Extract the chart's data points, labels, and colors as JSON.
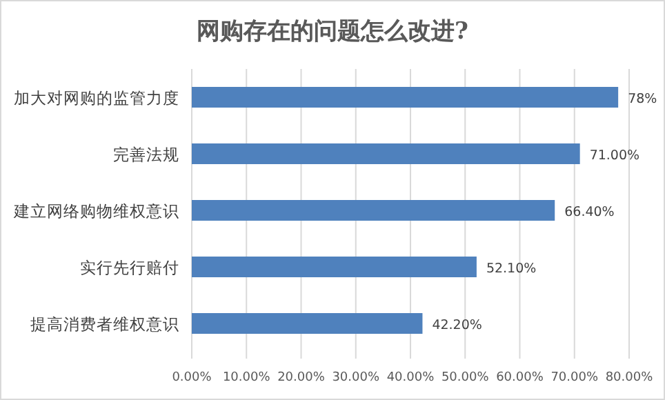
{
  "chart_data": {
    "type": "bar",
    "orientation": "horizontal",
    "title": "网购存在的问题怎么改进?",
    "categories": [
      "加大对网购的监管力度",
      "完善法规",
      "建立网络购物维权意识",
      "实行先行赔付",
      "提高消费者维权意识"
    ],
    "values": [
      78,
      71.0,
      66.4,
      52.1,
      42.2
    ],
    "value_labels": [
      "78%",
      "71.00%",
      "66.40%",
      "52.10%",
      "42.20%"
    ],
    "color": "#4f81bd",
    "xlim": [
      0,
      80
    ],
    "xticks": [
      {
        "value": 0,
        "label": "0.00%"
      },
      {
        "value": 10,
        "label": "10.00%"
      },
      {
        "value": 20,
        "label": "20.00%"
      },
      {
        "value": 30,
        "label": "30.00%"
      },
      {
        "value": 40,
        "label": "40.00%"
      },
      {
        "value": 50,
        "label": "50.00%"
      },
      {
        "value": 60,
        "label": "60.00%"
      },
      {
        "value": 70,
        "label": "70.00%"
      },
      {
        "value": 80,
        "label": "80.00%"
      }
    ],
    "grid": "x"
  }
}
